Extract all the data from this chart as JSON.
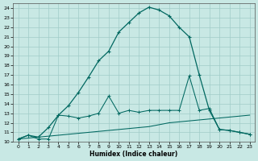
{
  "xlabel": "Humidex (Indice chaleur)",
  "bg_color": "#c8e8e4",
  "grid_color": "#a0ccc8",
  "line_color": "#006860",
  "xlim": [
    -0.5,
    23.5
  ],
  "ylim": [
    10,
    24.5
  ],
  "xticks": [
    0,
    1,
    2,
    3,
    4,
    5,
    6,
    7,
    8,
    9,
    10,
    11,
    12,
    13,
    14,
    15,
    16,
    17,
    18,
    19,
    20,
    21,
    22,
    23
  ],
  "yticks": [
    10,
    11,
    12,
    13,
    14,
    15,
    16,
    17,
    18,
    19,
    20,
    21,
    22,
    23,
    24
  ],
  "line_main_x": [
    0,
    1,
    2,
    3,
    4,
    5,
    6,
    7,
    8,
    9,
    10,
    11,
    12,
    13,
    14,
    15,
    16,
    17,
    18,
    19,
    20,
    21,
    22,
    23
  ],
  "line_main_y": [
    10.3,
    10.7,
    10.5,
    11.5,
    12.8,
    13.8,
    15.2,
    16.8,
    18.5,
    19.5,
    21.5,
    22.5,
    23.5,
    24.1,
    23.8,
    23.2,
    22.0,
    21.0,
    17.0,
    13.3,
    11.3,
    11.2,
    11.0,
    10.8
  ],
  "line_mid_x": [
    0,
    1,
    2,
    3,
    4,
    5,
    6,
    7,
    8,
    9,
    10,
    11,
    12,
    13,
    14,
    15,
    16,
    17,
    18,
    19,
    20,
    21,
    22,
    23
  ],
  "line_mid_y": [
    10.3,
    10.7,
    10.3,
    10.3,
    12.8,
    12.7,
    12.5,
    12.7,
    13.0,
    14.8,
    13.0,
    13.3,
    13.1,
    13.3,
    13.3,
    13.3,
    13.3,
    16.9,
    13.3,
    13.5,
    11.3,
    11.2,
    11.0,
    10.8
  ],
  "line_flat_x": [
    0,
    1,
    2,
    3,
    4,
    5,
    6,
    7,
    8,
    9,
    10,
    11,
    12,
    13,
    14,
    15,
    16,
    17,
    18,
    19,
    20,
    21,
    22,
    23
  ],
  "line_flat_y": [
    10.3,
    10.4,
    10.5,
    10.6,
    10.7,
    10.8,
    10.9,
    11.0,
    11.1,
    11.2,
    11.3,
    11.4,
    11.5,
    11.6,
    11.8,
    12.0,
    12.1,
    12.2,
    12.3,
    12.4,
    12.5,
    12.6,
    12.7,
    12.8
  ]
}
